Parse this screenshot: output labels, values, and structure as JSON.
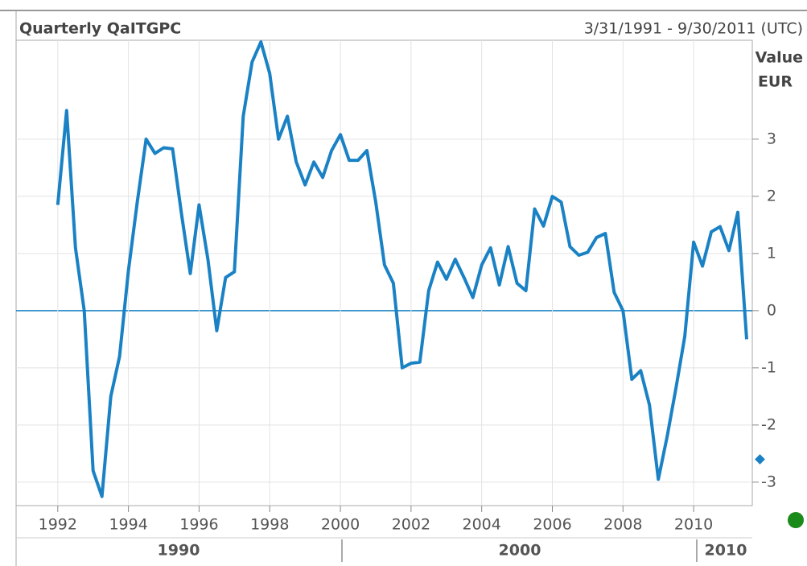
{
  "chart_data": {
    "type": "line",
    "title": "Quarterly QaITGPC",
    "date_range": "3/31/1991 - 9/30/2011 (UTC)",
    "y_label": "Value",
    "y_unit": "EUR",
    "decade_labels": [
      "1990",
      "2000",
      "2010"
    ],
    "x": [
      1992,
      1992.25,
      1992.5,
      1992.75,
      1993,
      1993.25,
      1993.5,
      1993.75,
      1994,
      1994.25,
      1994.5,
      1994.75,
      1995,
      1995.25,
      1995.5,
      1995.75,
      1996,
      1996.25,
      1996.5,
      1996.75,
      1997,
      1997.25,
      1997.5,
      1997.75,
      1998,
      1998.25,
      1998.5,
      1998.75,
      1999,
      1999.25,
      1999.5,
      1999.75,
      2000,
      2000.25,
      2000.5,
      2000.75,
      2001,
      2001.25,
      2001.5,
      2001.75,
      2002,
      2002.25,
      2002.5,
      2002.75,
      2003,
      2003.25,
      2003.5,
      2003.75,
      2004,
      2004.25,
      2004.5,
      2004.75,
      2005,
      2005.25,
      2005.5,
      2005.75,
      2006,
      2006.25,
      2006.5,
      2006.75,
      2007,
      2007.25,
      2007.5,
      2007.75,
      2008,
      2008.25,
      2008.5,
      2008.75,
      2009,
      2009.25,
      2009.5,
      2009.75,
      2010,
      2010.25,
      2010.5,
      2010.75,
      2011,
      2011.25,
      2011.5
    ],
    "series": [
      {
        "name": "QaITGPC",
        "color": "#1a82c4",
        "values": [
          1.85,
          3.5,
          1.1,
          0.0,
          -2.8,
          -3.25,
          -1.5,
          -0.8,
          0.7,
          1.9,
          3.0,
          2.75,
          2.85,
          2.83,
          1.7,
          0.65,
          1.85,
          0.9,
          -0.35,
          0.58,
          0.68,
          3.4,
          4.35,
          4.7,
          4.15,
          3.0,
          3.4,
          2.6,
          2.2,
          2.6,
          2.33,
          2.8,
          3.08,
          2.63,
          2.63,
          2.8,
          1.9,
          0.8,
          0.48,
          -1.0,
          -0.92,
          -0.9,
          0.35,
          0.85,
          0.55,
          0.9,
          0.58,
          0.23,
          0.8,
          1.1,
          0.45,
          1.12,
          0.48,
          0.35,
          1.78,
          1.48,
          2.0,
          1.9,
          1.12,
          0.97,
          1.02,
          1.28,
          1.35,
          0.32,
          0.0,
          -1.2,
          -1.05,
          -1.65,
          -2.95,
          -2.2,
          -1.35,
          -0.45,
          1.2,
          0.78,
          1.38,
          1.47,
          1.05,
          1.72,
          -0.5
        ]
      }
    ],
    "xlim": [
      1990.82,
      2011.66
    ],
    "xticks": [
      1992,
      1994,
      1996,
      1998,
      2000,
      2002,
      2004,
      2006,
      2008,
      2010
    ],
    "ylim": [
      -3.41,
      4.73
    ],
    "yticks": [
      -3,
      -2,
      -1,
      0,
      1,
      2,
      3
    ],
    "grid": true
  }
}
